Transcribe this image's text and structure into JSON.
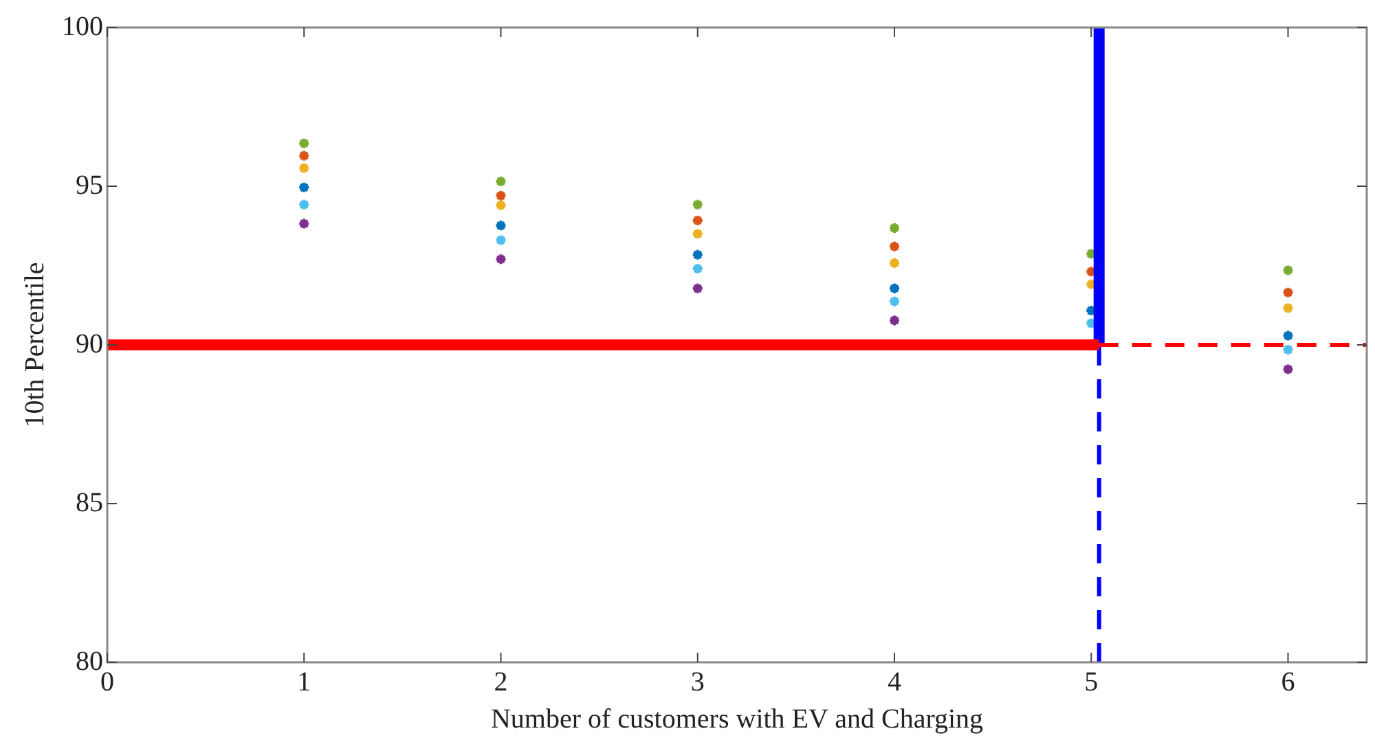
{
  "chart_data": {
    "type": "scatter",
    "xlabel": "Number of customers with EV and Charging",
    "ylabel": "10th Percentile",
    "x": [
      1,
      2,
      3,
      4,
      5,
      6
    ],
    "xlim": [
      0,
      6.4
    ],
    "ylim": [
      80,
      100
    ],
    "xticks": [
      0,
      1,
      2,
      3,
      4,
      5,
      6
    ],
    "yticks": [
      80,
      85,
      90,
      95,
      100
    ],
    "grid": false,
    "legend": false,
    "marker": "cross",
    "series": [
      {
        "color": "#77ac30",
        "values": [
          96.35,
          95.15,
          94.42,
          93.68,
          92.87,
          92.35
        ]
      },
      {
        "color": "#d95319",
        "values": [
          95.96,
          94.7,
          93.92,
          93.1,
          92.31,
          91.65
        ]
      },
      {
        "color": "#edb120",
        "values": [
          95.57,
          94.4,
          93.5,
          92.58,
          91.91,
          91.16
        ]
      },
      {
        "color": "#0072bd",
        "values": [
          94.96,
          93.76,
          92.84,
          91.78,
          91.08,
          90.29
        ]
      },
      {
        "color": "#4dbeee",
        "values": [
          94.42,
          93.3,
          92.4,
          91.37,
          90.68,
          89.85
        ]
      },
      {
        "color": "#7e2f8e",
        "values": [
          93.82,
          92.7,
          91.78,
          90.77,
          null,
          89.23
        ]
      },
      {
        "type": "line",
        "color": "#ff0000",
        "line_style": "solid",
        "marker": "none",
        "x": [
          0,
          5.04
        ],
        "values": [
          90,
          90
        ]
      },
      {
        "type": "line",
        "color": "#ff0000",
        "line_style": "dashed",
        "marker": "none",
        "x": [
          5.04,
          6.4
        ],
        "values": [
          90,
          90
        ]
      },
      {
        "type": "line",
        "color": "#0000ff",
        "line_style": "solid",
        "marker": "none",
        "x": [
          5.04,
          5.04
        ],
        "values": [
          90,
          100
        ]
      },
      {
        "type": "line",
        "color": "#0000ff",
        "line_style": "dashed",
        "marker": "none",
        "x": [
          5.04,
          5.04
        ],
        "values": [
          80,
          90
        ]
      }
    ]
  }
}
